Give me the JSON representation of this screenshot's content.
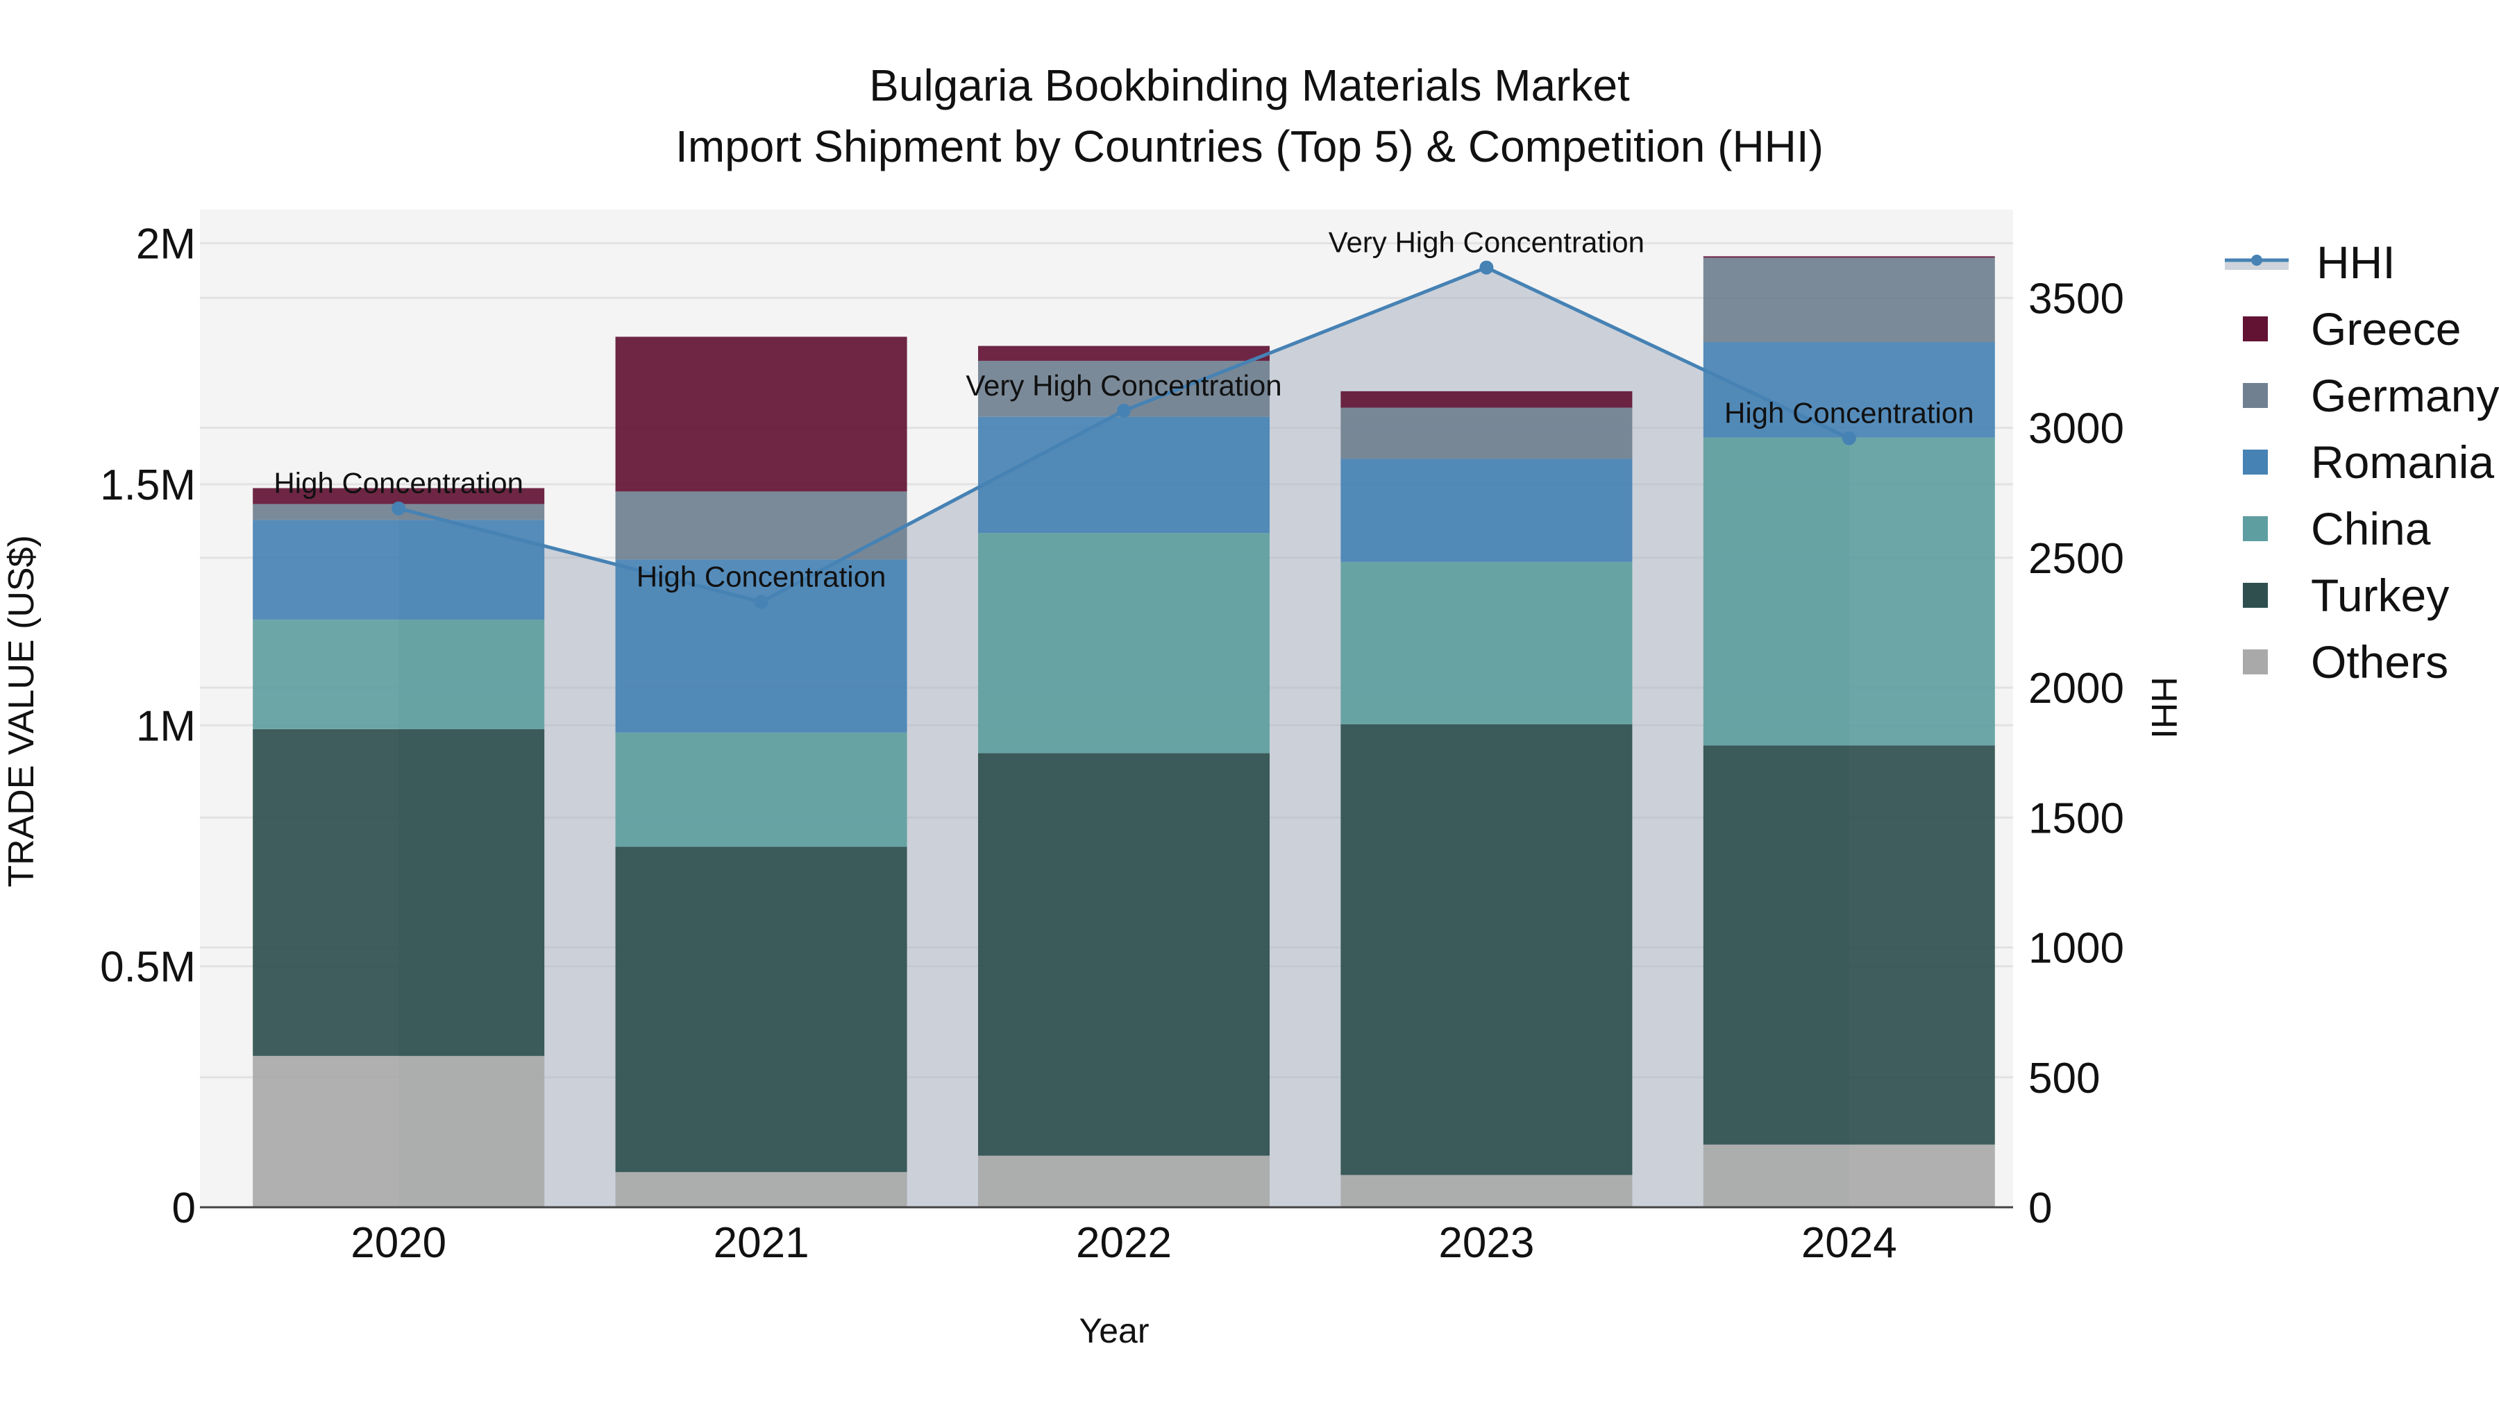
{
  "title": {
    "line1": "Bulgaria Bookbinding Materials Market",
    "line2": "Import Shipment by Countries (Top 5) & Competition (HHI)"
  },
  "axes": {
    "x_title": "Year",
    "y_left_title": "TRADE VALUE (US$)",
    "y_right_title": "HHI",
    "y_left_ticks": [
      "0",
      "0.5M",
      "1M",
      "1.5M",
      "2M"
    ],
    "y_right_ticks": [
      "0",
      "500",
      "1000",
      "1500",
      "2000",
      "2500",
      "3000",
      "3500"
    ]
  },
  "legend": [
    {
      "label": "HHI",
      "color": "#4682B4",
      "type": "line"
    },
    {
      "label": "Greece",
      "color": "#621334",
      "type": "bar"
    },
    {
      "label": "Germany",
      "color": "#708090",
      "type": "bar"
    },
    {
      "label": "Romania",
      "color": "#4682B4",
      "type": "bar"
    },
    {
      "label": "China",
      "color": "#5F9EA0",
      "type": "bar"
    },
    {
      "label": "Turkey",
      "color": "#2F4F4F",
      "type": "bar"
    },
    {
      "label": "Others",
      "color": "#A9A9A9",
      "type": "bar"
    }
  ],
  "annotations": [
    {
      "year": "2020",
      "text": "High Concentration"
    },
    {
      "year": "2021",
      "text": "High Concentration"
    },
    {
      "year": "2022",
      "text": "Very High Concentration"
    },
    {
      "year": "2023",
      "text": "Very High Concentration"
    },
    {
      "year": "2024",
      "text": "High Concentration"
    }
  ],
  "chart_data": {
    "type": "bar",
    "stacked": true,
    "title": "Bulgaria Bookbinding Materials Market — Import Shipment by Countries (Top 5) & Competition (HHI)",
    "xlabel": "Year",
    "ylabel": "TRADE VALUE (US$)",
    "y2label": "HHI",
    "categories": [
      "2020",
      "2021",
      "2022",
      "2023",
      "2024"
    ],
    "ylim": [
      0,
      2060000
    ],
    "y2lim": [
      0,
      3800
    ],
    "series": [
      {
        "name": "Others",
        "color": "#A9A9A9",
        "values": [
          314000,
          73000,
          107000,
          67000,
          130000
        ]
      },
      {
        "name": "Turkey",
        "color": "#2F4F4F",
        "values": [
          678000,
          675000,
          835000,
          935000,
          828000
        ]
      },
      {
        "name": "China",
        "color": "#5F9EA0",
        "values": [
          227000,
          237000,
          457000,
          337000,
          639000
        ]
      },
      {
        "name": "Romania",
        "color": "#4682B4",
        "values": [
          207000,
          359000,
          241000,
          214000,
          198000
        ]
      },
      {
        "name": "Germany",
        "color": "#708090",
        "values": [
          33000,
          141000,
          116000,
          106000,
          175000
        ]
      },
      {
        "name": "Greece",
        "color": "#621334",
        "values": [
          33000,
          321000,
          31000,
          34000,
          3000
        ]
      }
    ],
    "line_series": {
      "name": "HHI",
      "axis": "right",
      "color": "#4682B4",
      "fill": "tozeroy",
      "values": [
        2690,
        2330,
        3066,
        3617,
        2960
      ]
    },
    "grid": true,
    "legend_position": "right"
  }
}
